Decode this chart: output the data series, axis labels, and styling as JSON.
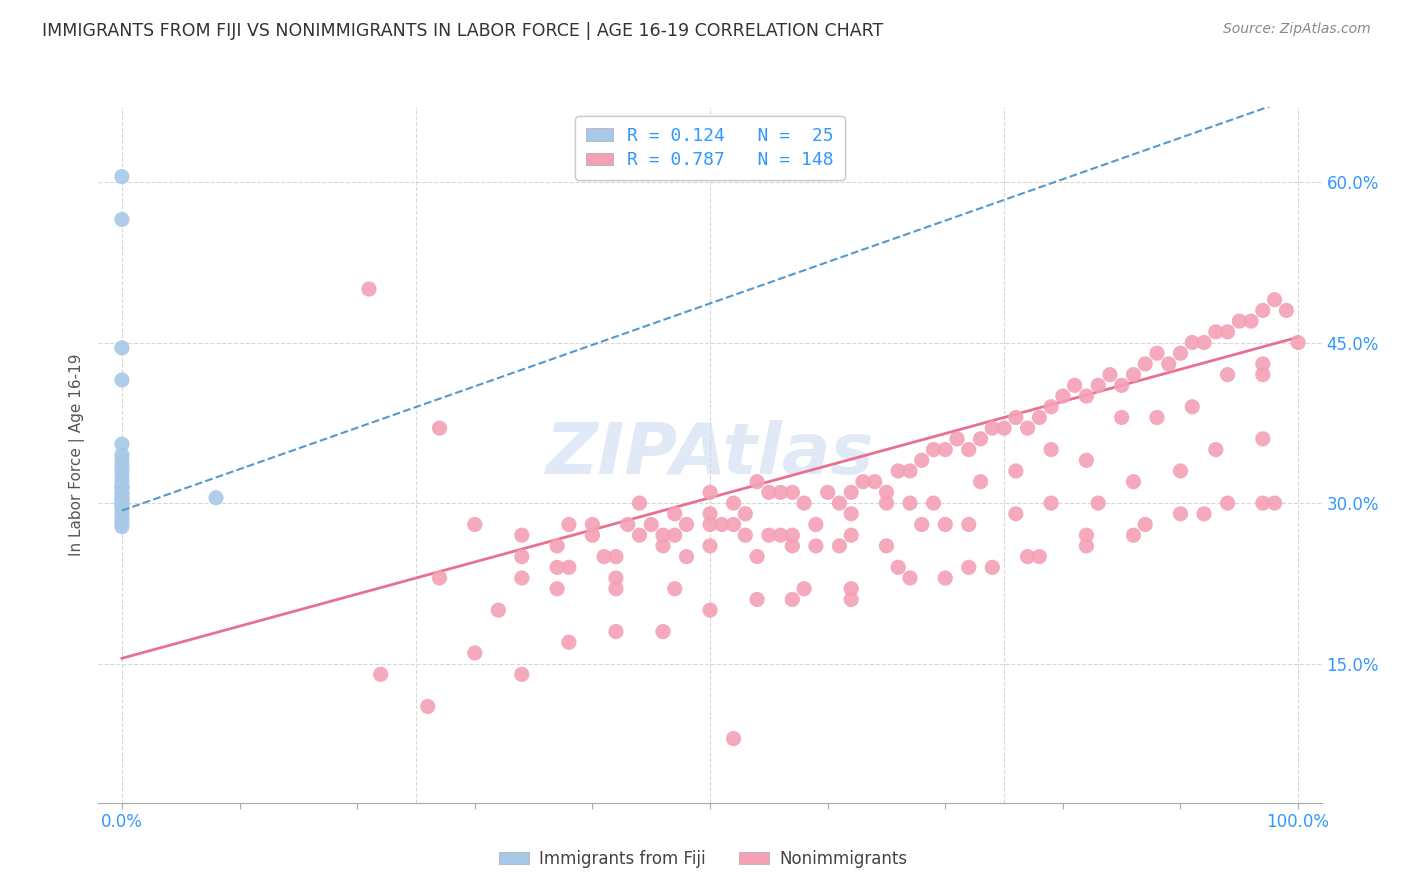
{
  "title": "IMMIGRANTS FROM FIJI VS NONIMMIGRANTS IN LABOR FORCE | AGE 16-19 CORRELATION CHART",
  "source": "Source: ZipAtlas.com",
  "ylabel_label": "In Labor Force | Age 16-19",
  "xlim": [
    -0.02,
    1.02
  ],
  "ylim": [
    0.02,
    0.67
  ],
  "fiji_color": "#a8c8e8",
  "nonimm_color": "#f4a0b5",
  "fiji_line_color": "#5599cc",
  "nonimm_line_color": "#e87090",
  "background_color": "#ffffff",
  "grid_color": "#d8d8d8",
  "watermark_color": "#c8d8ee",
  "fiji_scatter_x": [
    0.0,
    0.0,
    0.0,
    0.0,
    0.0,
    0.0,
    0.0,
    0.0,
    0.0,
    0.0,
    0.0,
    0.0,
    0.0,
    0.0,
    0.0,
    0.0,
    0.0,
    0.0,
    0.0,
    0.0,
    0.0,
    0.0,
    0.0,
    0.0,
    0.08
  ],
  "fiji_scatter_y": [
    0.605,
    0.565,
    0.445,
    0.415,
    0.355,
    0.345,
    0.34,
    0.335,
    0.33,
    0.325,
    0.32,
    0.315,
    0.315,
    0.31,
    0.308,
    0.305,
    0.303,
    0.3,
    0.298,
    0.295,
    0.29,
    0.285,
    0.282,
    0.278,
    0.305
  ],
  "nonimm_scatter_x": [
    0.21,
    0.27,
    0.3,
    0.34,
    0.34,
    0.37,
    0.38,
    0.4,
    0.4,
    0.42,
    0.43,
    0.44,
    0.45,
    0.46,
    0.47,
    0.48,
    0.48,
    0.5,
    0.5,
    0.51,
    0.52,
    0.52,
    0.53,
    0.54,
    0.55,
    0.55,
    0.56,
    0.57,
    0.57,
    0.58,
    0.59,
    0.6,
    0.61,
    0.62,
    0.62,
    0.63,
    0.64,
    0.65,
    0.66,
    0.67,
    0.68,
    0.69,
    0.69,
    0.7,
    0.71,
    0.72,
    0.73,
    0.74,
    0.75,
    0.76,
    0.77,
    0.78,
    0.79,
    0.8,
    0.81,
    0.82,
    0.83,
    0.84,
    0.85,
    0.86,
    0.87,
    0.88,
    0.89,
    0.9,
    0.91,
    0.92,
    0.93,
    0.94,
    0.95,
    0.96,
    0.97,
    0.97,
    0.98,
    0.99,
    1.0,
    0.37,
    0.41,
    0.44,
    0.47,
    0.5,
    0.53,
    0.56,
    0.59,
    0.62,
    0.65,
    0.67,
    0.7,
    0.73,
    0.76,
    0.79,
    0.82,
    0.85,
    0.88,
    0.91,
    0.94,
    0.97,
    0.34,
    0.38,
    0.42,
    0.46,
    0.5,
    0.54,
    0.57,
    0.61,
    0.65,
    0.68,
    0.72,
    0.76,
    0.79,
    0.83,
    0.86,
    0.9,
    0.93,
    0.97,
    0.26,
    0.3,
    0.34,
    0.38,
    0.42,
    0.46,
    0.5,
    0.54,
    0.58,
    0.62,
    0.66,
    0.7,
    0.74,
    0.78,
    0.82,
    0.86,
    0.9,
    0.94,
    0.98,
    0.22,
    0.27,
    0.32,
    0.37,
    0.42,
    0.47,
    0.52,
    0.57,
    0.62,
    0.67,
    0.72,
    0.77,
    0.82,
    0.87,
    0.92,
    0.97
  ],
  "nonimm_scatter_y": [
    0.5,
    0.37,
    0.28,
    0.27,
    0.25,
    0.26,
    0.28,
    0.27,
    0.28,
    0.25,
    0.28,
    0.27,
    0.28,
    0.26,
    0.29,
    0.25,
    0.28,
    0.28,
    0.31,
    0.28,
    0.3,
    0.28,
    0.29,
    0.32,
    0.31,
    0.27,
    0.31,
    0.26,
    0.31,
    0.3,
    0.28,
    0.31,
    0.3,
    0.31,
    0.29,
    0.32,
    0.32,
    0.3,
    0.33,
    0.33,
    0.34,
    0.3,
    0.35,
    0.35,
    0.36,
    0.35,
    0.36,
    0.37,
    0.37,
    0.38,
    0.37,
    0.38,
    0.39,
    0.4,
    0.41,
    0.4,
    0.41,
    0.42,
    0.41,
    0.42,
    0.43,
    0.44,
    0.43,
    0.44,
    0.45,
    0.45,
    0.46,
    0.46,
    0.47,
    0.47,
    0.48,
    0.43,
    0.49,
    0.48,
    0.45,
    0.22,
    0.25,
    0.3,
    0.27,
    0.29,
    0.27,
    0.27,
    0.26,
    0.27,
    0.31,
    0.3,
    0.28,
    0.32,
    0.33,
    0.35,
    0.34,
    0.38,
    0.38,
    0.39,
    0.42,
    0.42,
    0.23,
    0.24,
    0.22,
    0.27,
    0.26,
    0.25,
    0.27,
    0.26,
    0.26,
    0.28,
    0.28,
    0.29,
    0.3,
    0.3,
    0.32,
    0.33,
    0.35,
    0.36,
    0.11,
    0.16,
    0.14,
    0.17,
    0.18,
    0.18,
    0.2,
    0.21,
    0.22,
    0.21,
    0.24,
    0.23,
    0.24,
    0.25,
    0.26,
    0.27,
    0.29,
    0.3,
    0.3,
    0.14,
    0.23,
    0.2,
    0.24,
    0.23,
    0.22,
    0.08,
    0.21,
    0.22,
    0.23,
    0.24,
    0.25,
    0.27,
    0.28,
    0.29,
    0.3
  ],
  "fiji_trendline_x": [
    0.0,
    1.0
  ],
  "fiji_trendline_y": [
    0.293,
    0.68
  ],
  "nonimm_trendline_x": [
    0.0,
    1.0
  ],
  "nonimm_trendline_y": [
    0.155,
    0.455
  ]
}
